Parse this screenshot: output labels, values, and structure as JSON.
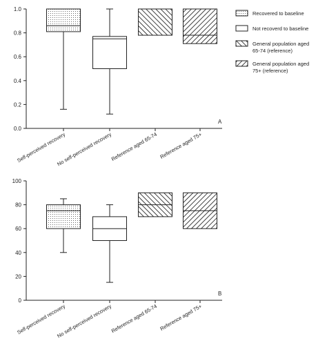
{
  "legend": [
    {
      "key": "recovered",
      "pattern": "dots",
      "lines": [
        "Recovered to baseline"
      ]
    },
    {
      "key": "not_recovered",
      "pattern": "plain",
      "lines": [
        "Not recoverd to baseline"
      ]
    },
    {
      "key": "ref_65_74",
      "pattern": "hatch-right",
      "lines": [
        "General population aged",
        "65-74 (reference)"
      ]
    },
    {
      "key": "ref_75_plus",
      "pattern": "hatch-left",
      "lines": [
        "General population aged",
        "75+ (reference)"
      ]
    }
  ],
  "chart_data": [
    {
      "type": "boxplot",
      "panel_label": "A",
      "ylim": [
        0,
        1.0
      ],
      "yticks": [
        "0.0",
        "0.2",
        "0.4",
        "0.6",
        "0.8",
        "1.0"
      ],
      "ytick_values": [
        0,
        0.2,
        0.4,
        0.6,
        0.8,
        1.0
      ],
      "categories": [
        "Self-perceived recovery",
        "No self-perceived recovery",
        "Reference aged 65-74",
        "Reference aged 75+"
      ],
      "boxes": [
        {
          "category": "Self-perceived recovery",
          "pattern": "dots",
          "min": 0.16,
          "q1": 0.81,
          "median": 0.86,
          "q3": 1.0,
          "max": 1.0
        },
        {
          "category": "No self-perceived recovery",
          "pattern": "plain",
          "min": 0.12,
          "q1": 0.5,
          "median": 0.75,
          "q3": 0.77,
          "max": 1.0
        },
        {
          "category": "Reference aged 65-74",
          "pattern": "hatch-right",
          "q1": 0.78,
          "median": 1.0,
          "q3": 1.0
        },
        {
          "category": "Reference aged 75+",
          "pattern": "hatch-left",
          "q1": 0.71,
          "median": 0.78,
          "q3": 1.0
        }
      ]
    },
    {
      "type": "boxplot",
      "panel_label": "B",
      "ylim": [
        0,
        100
      ],
      "yticks": [
        "0",
        "20",
        "40",
        "60",
        "80",
        "100"
      ],
      "ytick_values": [
        0,
        20,
        40,
        60,
        80,
        100
      ],
      "categories": [
        "Self-perceived recovery",
        "No self-perceived recovery",
        "Reference aged 65-74",
        "Reference aged 75+"
      ],
      "boxes": [
        {
          "category": "Self-perceived recovery",
          "pattern": "dots",
          "min": 40,
          "q1": 60,
          "median": 75,
          "q3": 80,
          "max": 85
        },
        {
          "category": "No self-perceived recovery",
          "pattern": "plain",
          "min": 15,
          "q1": 50,
          "median": 60,
          "q3": 70,
          "max": 80
        },
        {
          "category": "Reference aged 65-74",
          "pattern": "hatch-right",
          "q1": 70,
          "median": 80,
          "q3": 90
        },
        {
          "category": "Reference aged 75+",
          "pattern": "hatch-left",
          "q1": 60,
          "median": 75,
          "q3": 90
        }
      ]
    }
  ]
}
